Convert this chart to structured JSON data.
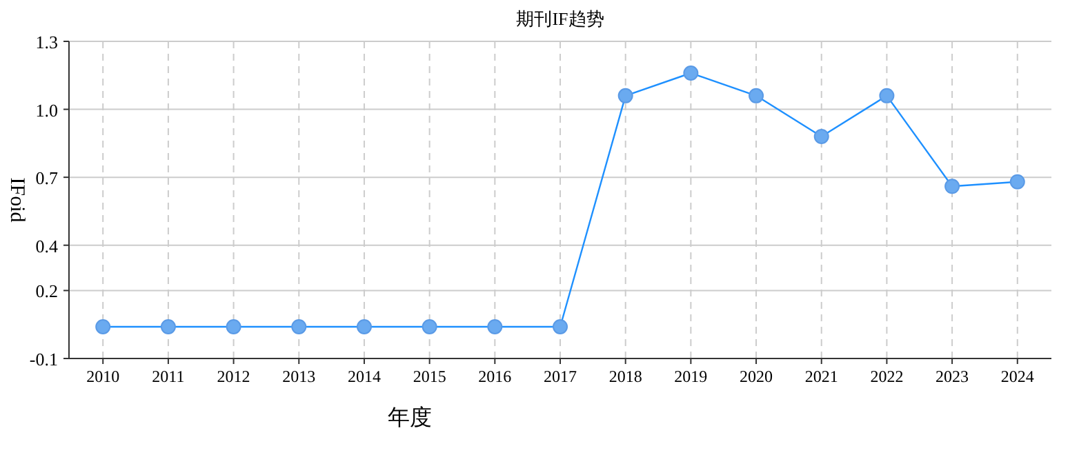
{
  "chart_data": {
    "type": "line",
    "title": "期刊IF趋势",
    "xlabel": "年度",
    "ylabel": "IFoid",
    "categories": [
      "2010",
      "2011",
      "2012",
      "2013",
      "2014",
      "2015",
      "2016",
      "2017",
      "2018",
      "2019",
      "2020",
      "2021",
      "2022",
      "2023",
      "2024"
    ],
    "series": [
      {
        "color": "#1e90ff",
        "values": [
          0.04,
          0.04,
          0.04,
          0.04,
          0.04,
          0.04,
          0.04,
          0.04,
          1.06,
          1.16,
          1.06,
          0.88,
          1.06,
          0.66,
          0.68
        ]
      }
    ],
    "ylim": [
      -0.1,
      1.3
    ],
    "yticks": [
      -0.1,
      0.2,
      0.4,
      0.7,
      {
        "value": 1.0,
        "label": "1.0"
      },
      1.3
    ],
    "grid": true,
    "marker": "circle",
    "line_style": "solid"
  }
}
